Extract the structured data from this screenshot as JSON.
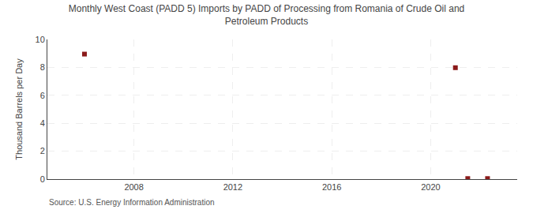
{
  "chart_data": {
    "type": "scatter",
    "title": "Monthly West Coast (PADD 5) Imports by PADD of Processing from Romania of Crude Oil and\nPetroleum Products",
    "ylabel": "Thousand Barrels per Day",
    "source": "Source: U.S. Energy Information Administration",
    "x": [
      2006,
      2021,
      2021.5,
      2022.3
    ],
    "values": [
      8.952,
      7.978,
      0.04,
      0.04
    ],
    "color": "#8b1a1a",
    "marker": "square",
    "xlim": [
      2004.5,
      2023.5
    ],
    "xticks": [
      2008,
      2012,
      2016,
      2020
    ],
    "ylim": [
      0,
      10
    ],
    "yticks": [
      0,
      2,
      4,
      6,
      8,
      10
    ],
    "grid": true
  }
}
